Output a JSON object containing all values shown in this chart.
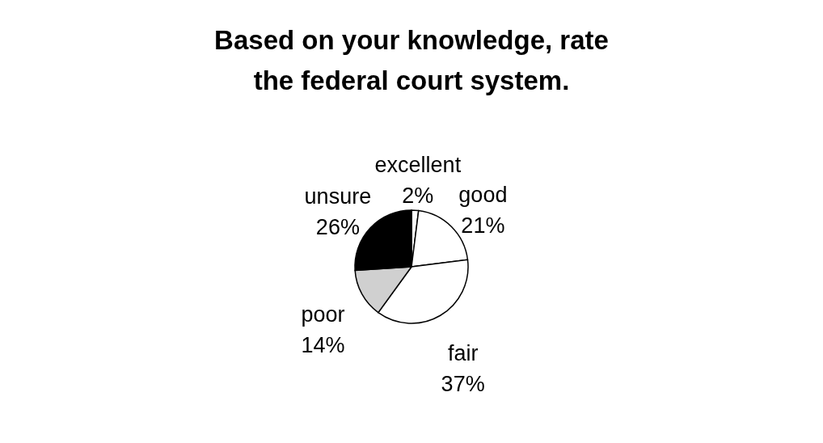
{
  "chart_data": {
    "type": "pie",
    "title": "Based on your knowledge, rate the federal court system.",
    "categories": [
      "excellent",
      "good",
      "fair",
      "poor",
      "unsure"
    ],
    "values": [
      2,
      21,
      37,
      14,
      26
    ],
    "value_labels": [
      "2%",
      "21%",
      "37%",
      "14%",
      "26%"
    ],
    "colors": [
      "#ffffff",
      "#ffffff",
      "#ffffff",
      "#d0d0d0",
      "#000000"
    ],
    "legend": false
  }
}
